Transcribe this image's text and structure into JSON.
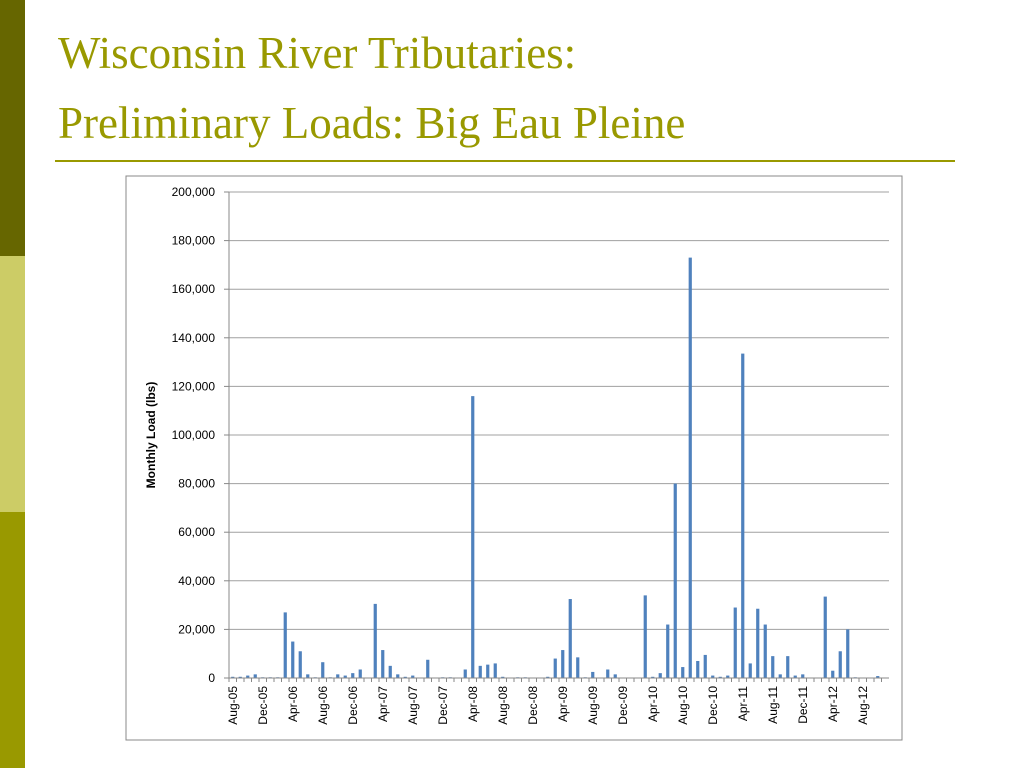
{
  "slide": {
    "title_lines": [
      "Wisconsin River Tributaries:",
      "Preliminary Loads: Big Eau Pleine"
    ]
  },
  "chart_data": {
    "type": "bar",
    "y_label": "Monthly Load (lbs)",
    "color": "#4f81bd",
    "grid": true,
    "categories": [
      "Aug-05",
      null,
      null,
      null,
      "Dec-05",
      null,
      null,
      null,
      "Apr-06",
      null,
      null,
      null,
      "Aug-06",
      null,
      null,
      null,
      "Dec-06",
      null,
      null,
      null,
      "Apr-07",
      null,
      null,
      null,
      "Aug-07",
      null,
      null,
      null,
      "Dec-07",
      null,
      null,
      null,
      "Apr-08",
      null,
      null,
      null,
      "Aug-08",
      null,
      null,
      null,
      "Dec-08",
      null,
      null,
      null,
      "Apr-09",
      null,
      null,
      null,
      "Aug-09",
      null,
      null,
      null,
      "Dec-09",
      null,
      null,
      null,
      "Apr-10",
      null,
      null,
      null,
      "Aug-10",
      null,
      null,
      null,
      "Dec-10",
      null,
      null,
      null,
      "Apr-11",
      null,
      null,
      null,
      "Aug-11",
      null,
      null,
      null,
      "Dec-11",
      null,
      null,
      null,
      "Apr-12",
      null,
      null,
      null,
      "Aug-12",
      null,
      null,
      null
    ],
    "values": [
      500,
      500,
      1000,
      1500,
      300,
      300,
      300,
      27000,
      15000,
      11000,
      1500,
      300,
      6500,
      300,
      1500,
      1000,
      2000,
      3500,
      0,
      30500,
      11500,
      5000,
      1500,
      500,
      1000,
      0,
      7500,
      0,
      300,
      300,
      0,
      3500,
      116000,
      5000,
      5500,
      6000,
      500,
      0,
      300,
      300,
      0,
      0,
      500,
      8000,
      11500,
      32500,
      8500,
      300,
      2500,
      0,
      3500,
      1500,
      0,
      0,
      0,
      34000,
      500,
      2000,
      22000,
      80000,
      4500,
      173000,
      7000,
      9500,
      1000,
      500,
      1000,
      29000,
      133500,
      6000,
      28500,
      22000,
      9000,
      1500,
      9000,
      1000,
      1500,
      0,
      0,
      33500,
      3000,
      11000,
      20000,
      300,
      0,
      0,
      800,
      0
    ],
    "ylim": [
      0,
      200000
    ],
    "yticks": [
      0,
      {
        "value": 20000,
        "label": "20,000"
      },
      {
        "value": 40000,
        "label": "40,000"
      },
      {
        "value": 60000,
        "label": "60,000"
      },
      {
        "value": 80000,
        "label": "80,000"
      },
      {
        "value": 100000,
        "label": "100,000"
      },
      {
        "value": 120000,
        "label": "120,000"
      },
      {
        "value": 140000,
        "label": "140,000"
      },
      {
        "value": 160000,
        "label": "160,000"
      },
      {
        "value": 180000,
        "label": "180,000"
      },
      {
        "value": 200000,
        "label": "200,000"
      }
    ]
  }
}
